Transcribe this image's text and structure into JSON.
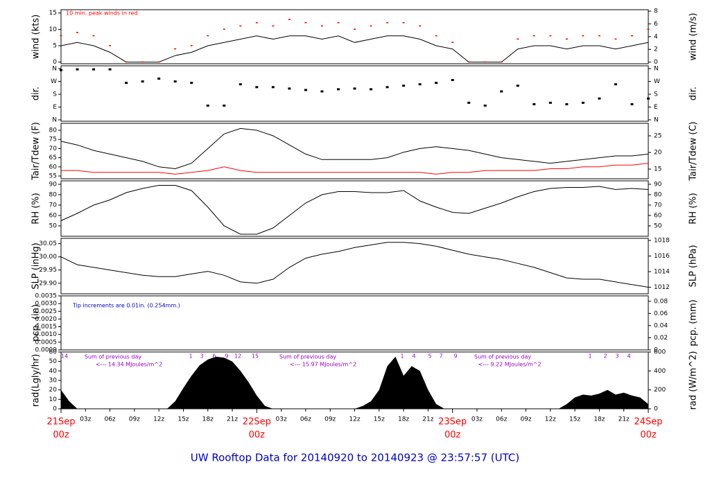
{
  "title": "UW Rooftop Data for 20140920  to  20140923 @ 23:57:57  (UTC)",
  "chart_data": [
    {
      "type": "line",
      "ylabel": "wind (kts)",
      "y2label": "wind (m/s)",
      "annotation": "10 min. peak winds in red",
      "x": [
        0,
        2,
        4,
        6,
        8,
        10,
        12,
        14,
        16,
        18,
        20,
        22,
        24,
        26,
        28,
        30,
        32,
        34,
        36,
        38,
        40,
        42,
        44,
        46,
        48,
        50,
        52,
        54,
        56,
        58,
        60,
        62,
        64,
        66,
        68,
        70,
        72
      ],
      "xlim": [
        0,
        72
      ],
      "ylim": [
        -0.5,
        16
      ],
      "yticks": [
        0,
        5,
        10,
        15
      ],
      "y2lim": [
        -0.26,
        8.23
      ],
      "y2ticks": [
        0,
        2,
        4,
        6,
        8
      ],
      "series": [
        {
          "color": "#000000",
          "values": [
            5,
            6,
            5,
            3,
            0,
            0,
            0,
            2,
            3,
            5,
            6,
            7,
            8,
            7,
            8,
            8,
            7,
            8,
            6,
            7,
            8,
            8,
            7,
            5,
            4,
            0,
            0,
            0,
            4,
            5,
            5,
            4,
            5,
            5,
            4,
            5,
            6
          ]
        },
        {
          "color": "#ff0000",
          "style": "points",
          "values": [
            8,
            9,
            8,
            5,
            0,
            0,
            0,
            4,
            5,
            8,
            10,
            11,
            12,
            11,
            13,
            12,
            11,
            12,
            10,
            11,
            12,
            12,
            11,
            8,
            6,
            0,
            0,
            0,
            7,
            8,
            8,
            7,
            8,
            8,
            7,
            8,
            10
          ]
        }
      ]
    },
    {
      "type": "scatter",
      "ylabel": "dir.",
      "y2label": "dir.",
      "x": [
        0,
        2,
        4,
        6,
        8,
        10,
        12,
        14,
        16,
        18,
        20,
        22,
        24,
        26,
        28,
        30,
        32,
        34,
        36,
        38,
        40,
        42,
        44,
        46,
        48,
        50,
        52,
        54,
        56,
        58,
        60,
        62,
        64,
        66,
        68,
        70,
        72
      ],
      "xlim": [
        0,
        72
      ],
      "ylim": [
        -10,
        380
      ],
      "yticks": [
        {
          "value": 0,
          "label": "N"
        },
        {
          "value": 90,
          "label": "E"
        },
        {
          "value": 180,
          "label": "S"
        },
        {
          "value": 270,
          "label": "W"
        },
        {
          "value": 360,
          "label": "N"
        }
      ],
      "y2lim": [
        -10,
        380
      ],
      "y2ticks": [
        {
          "value": 0,
          "label": "N"
        },
        {
          "value": 90,
          "label": "E"
        },
        {
          "value": 180,
          "label": "S"
        },
        {
          "value": 270,
          "label": "W"
        },
        {
          "value": 360,
          "label": "N"
        }
      ],
      "series": [
        {
          "color": "#000000",
          "values": [
            350,
            355,
            355,
            355,
            260,
            270,
            290,
            270,
            260,
            100,
            100,
            250,
            230,
            230,
            220,
            210,
            200,
            215,
            220,
            215,
            230,
            240,
            250,
            260,
            280,
            120,
            100,
            200,
            240,
            110,
            120,
            110,
            120,
            150,
            250,
            110,
            150
          ]
        }
      ]
    },
    {
      "type": "line",
      "ylabel": "Tair/Tdew (F)",
      "y2label": "Tair/Tdew (C)",
      "x": [
        0,
        2,
        4,
        6,
        8,
        10,
        12,
        14,
        16,
        18,
        20,
        22,
        24,
        26,
        28,
        30,
        32,
        34,
        36,
        38,
        40,
        42,
        44,
        46,
        48,
        50,
        52,
        54,
        56,
        58,
        60,
        62,
        64,
        66,
        68,
        70,
        72
      ],
      "xlim": [
        0,
        72
      ],
      "ylim": [
        53.5,
        83.8
      ],
      "yticks": [
        55,
        60,
        65,
        70,
        75,
        80
      ],
      "y2lim": [
        12.1,
        28.75
      ],
      "y2ticks": [
        15,
        20,
        25
      ],
      "series": [
        {
          "color": "#000000",
          "values": [
            74,
            72,
            69,
            67,
            65,
            63,
            60,
            59,
            62,
            70,
            78,
            81,
            80,
            77,
            72,
            67,
            64,
            64,
            64,
            64,
            65,
            68,
            70,
            71,
            70,
            69,
            67,
            65,
            64,
            63,
            62,
            63,
            64,
            65,
            66,
            66,
            67
          ]
        },
        {
          "color": "#ff0000",
          "values": [
            58,
            58,
            57,
            57,
            57,
            57,
            57,
            56,
            57,
            58,
            60,
            58,
            57,
            57,
            57,
            57,
            57,
            57,
            57,
            57,
            57,
            57,
            57,
            56,
            57,
            57,
            58,
            58,
            58,
            58,
            59,
            59,
            60,
            60,
            61,
            61,
            62
          ]
        }
      ]
    },
    {
      "type": "line",
      "ylabel": "RH (%)",
      "y2label": "RH (%)",
      "x": [
        0,
        2,
        4,
        6,
        8,
        10,
        12,
        14,
        16,
        18,
        20,
        22,
        24,
        26,
        28,
        30,
        32,
        34,
        36,
        38,
        40,
        42,
        44,
        46,
        48,
        50,
        52,
        54,
        56,
        58,
        60,
        62,
        64,
        66,
        68,
        70,
        72
      ],
      "xlim": [
        0,
        72
      ],
      "ylim": [
        40,
        93.3
      ],
      "yticks": [
        50,
        60,
        70,
        80,
        90
      ],
      "y2lim": [
        40,
        93.3
      ],
      "y2ticks": [
        50,
        60,
        70,
        80,
        90
      ],
      "series": [
        {
          "color": "#000000",
          "values": [
            55,
            62,
            70,
            75,
            82,
            86,
            89,
            89,
            84,
            68,
            50,
            42,
            42,
            48,
            60,
            72,
            80,
            83,
            83,
            82,
            82,
            84,
            74,
            68,
            63,
            62,
            67,
            72,
            78,
            83,
            86,
            87,
            87,
            88,
            85,
            86,
            85
          ]
        }
      ]
    },
    {
      "type": "line",
      "ylabel": "SLP (inHg)",
      "y2label": "SLP (hPa)",
      "x": [
        0,
        2,
        4,
        6,
        8,
        10,
        12,
        14,
        16,
        18,
        20,
        22,
        24,
        26,
        28,
        30,
        32,
        34,
        36,
        38,
        40,
        42,
        44,
        46,
        48,
        50,
        52,
        54,
        56,
        58,
        60,
        62,
        64,
        66,
        68,
        70,
        72
      ],
      "xlim": [
        0,
        72
      ],
      "ylim": [
        29.86,
        30.07
      ],
      "yticks": [
        {
          "value": 29.9,
          "label": "29.90"
        },
        29.95,
        {
          "value": 30,
          "label": "30.00"
        },
        30.05
      ],
      "y2lim": [
        1011.16,
        1018.27
      ],
      "y2ticks": [
        1012,
        1014,
        1016,
        1018
      ],
      "series": [
        {
          "color": "#000000",
          "values": [
            30.0,
            29.97,
            29.96,
            29.95,
            29.94,
            29.93,
            29.925,
            29.925,
            29.935,
            29.945,
            29.93,
            29.905,
            29.9,
            29.915,
            29.96,
            29.995,
            30.01,
            30.02,
            30.035,
            30.045,
            30.055,
            30.055,
            30.05,
            30.04,
            30.025,
            30.01,
            30.0,
            29.99,
            29.975,
            29.96,
            29.94,
            29.92,
            29.915,
            29.915,
            29.905,
            29.895,
            29.885
          ]
        }
      ]
    },
    {
      "type": "line",
      "ylabel": "pcp. (in)",
      "y2label": "pcp. (mm)",
      "annotation": "Tip increments are 0.01in. (0.254mm.)",
      "xlim": [
        0,
        72
      ],
      "ylim": [
        0,
        0.0035
      ],
      "yticks": [
        {
          "value": 0,
          "label": "0.0000"
        },
        {
          "value": 0.0005,
          "label": "0.0005"
        },
        {
          "value": 0.001,
          "label": "0.0010"
        },
        {
          "value": 0.0015,
          "label": "0.0015"
        },
        {
          "value": 0.002,
          "label": "0.0020"
        },
        {
          "value": 0.0025,
          "label": "0.0025"
        },
        {
          "value": 0.003,
          "label": "0.0030"
        },
        {
          "value": 0.0035,
          "label": "0.0035"
        }
      ],
      "y2lim": [
        0,
        0.0889
      ],
      "y2ticks": [
        0,
        0.02,
        0.04,
        0.06,
        0.08
      ]
    },
    {
      "type": "area",
      "ylabel": "rad(Lgly/hr)",
      "y2label": "rad (W/m^2)",
      "x": [
        0,
        1,
        2,
        3,
        4,
        5,
        6,
        7,
        8,
        9,
        10,
        11,
        12,
        13,
        14,
        15,
        16,
        17,
        18,
        19,
        20,
        21,
        22,
        23,
        24,
        25,
        26,
        27,
        28,
        29,
        30,
        31,
        32,
        33,
        34,
        35,
        36,
        37,
        38,
        39,
        40,
        41,
        42,
        43,
        44,
        45,
        46,
        47,
        48,
        49,
        50,
        51,
        52,
        53,
        54,
        55,
        56,
        57,
        58,
        59,
        60,
        61,
        62,
        63,
        64,
        65,
        66,
        67,
        68,
        69,
        70,
        71,
        72
      ],
      "xlim": [
        0,
        72
      ],
      "ylim": [
        0,
        60
      ],
      "yticks": [
        0,
        10,
        20,
        30,
        40,
        50,
        60
      ],
      "y2lim": [
        0,
        600
      ],
      "y2ticks": [
        0,
        200,
        400,
        600
      ],
      "series": [
        {
          "color": "#000000",
          "values": [
            20,
            8,
            0,
            0,
            0,
            0,
            0,
            0,
            0,
            0,
            0,
            0,
            0,
            0,
            8,
            22,
            35,
            46,
            52,
            55,
            54,
            50,
            40,
            28,
            14,
            3,
            0,
            0,
            0,
            0,
            0,
            0,
            0,
            0,
            0,
            0,
            0,
            3,
            8,
            20,
            45,
            55,
            35,
            45,
            40,
            20,
            5,
            0,
            0,
            0,
            0,
            0,
            0,
            0,
            0,
            0,
            0,
            0,
            0,
            0,
            0,
            0,
            5,
            12,
            15,
            14,
            16,
            20,
            15,
            17,
            14,
            12,
            5
          ]
        }
      ],
      "day_labels": [
        {
          "marks": [
            "14"
          ],
          "sum_label": "Sum of previous day",
          "sum_text": "<--- 14.34 MJoules/m^2"
        },
        {
          "marks": [
            "1",
            "3",
            "6",
            "9",
            "12",
            "15"
          ],
          "sum_label": "Sum of previous day",
          "sum_text": "<--- 15.97 MJoules/m^2"
        },
        {
          "marks": [
            "1",
            "4",
            "5",
            "7",
            "9"
          ],
          "sum_label": "Sum of previous day",
          "sum_text": "<--- 9.22 MJoules/m^2"
        },
        {
          "marks": [
            "1",
            "2",
            "3",
            "4"
          ]
        }
      ],
      "xticks": [
        {
          "value": 3,
          "label": "03z"
        },
        {
          "value": 6,
          "label": "06z"
        },
        {
          "value": 9,
          "label": "09z"
        },
        {
          "value": 12,
          "label": "12z"
        },
        {
          "value": 15,
          "label": "15z"
        },
        {
          "value": 18,
          "label": "18z"
        },
        {
          "value": 21,
          "label": "21z"
        },
        {
          "value": 27,
          "label": "03z"
        },
        {
          "value": 30,
          "label": "06z"
        },
        {
          "value": 33,
          "label": "09z"
        },
        {
          "value": 36,
          "label": "12z"
        },
        {
          "value": 39,
          "label": "15z"
        },
        {
          "value": 42,
          "label": "18z"
        },
        {
          "value": 45,
          "label": "21z"
        },
        {
          "value": 51,
          "label": "03z"
        },
        {
          "value": 54,
          "label": "06z"
        },
        {
          "value": 57,
          "label": "09z"
        },
        {
          "value": 60,
          "label": "12z"
        },
        {
          "value": 63,
          "label": "15z"
        },
        {
          "value": 66,
          "label": "18z"
        },
        {
          "value": 69,
          "label": "21z"
        }
      ],
      "date_ticks": [
        {
          "value": 0,
          "label": "21Sep",
          "sublabel": "00z"
        },
        {
          "value": 24,
          "label": "22Sep",
          "sublabel": "00z"
        },
        {
          "value": 48,
          "label": "23Sep",
          "sublabel": "00z"
        },
        {
          "value": 72,
          "label": "24Sep",
          "sublabel": "00z"
        }
      ]
    }
  ]
}
